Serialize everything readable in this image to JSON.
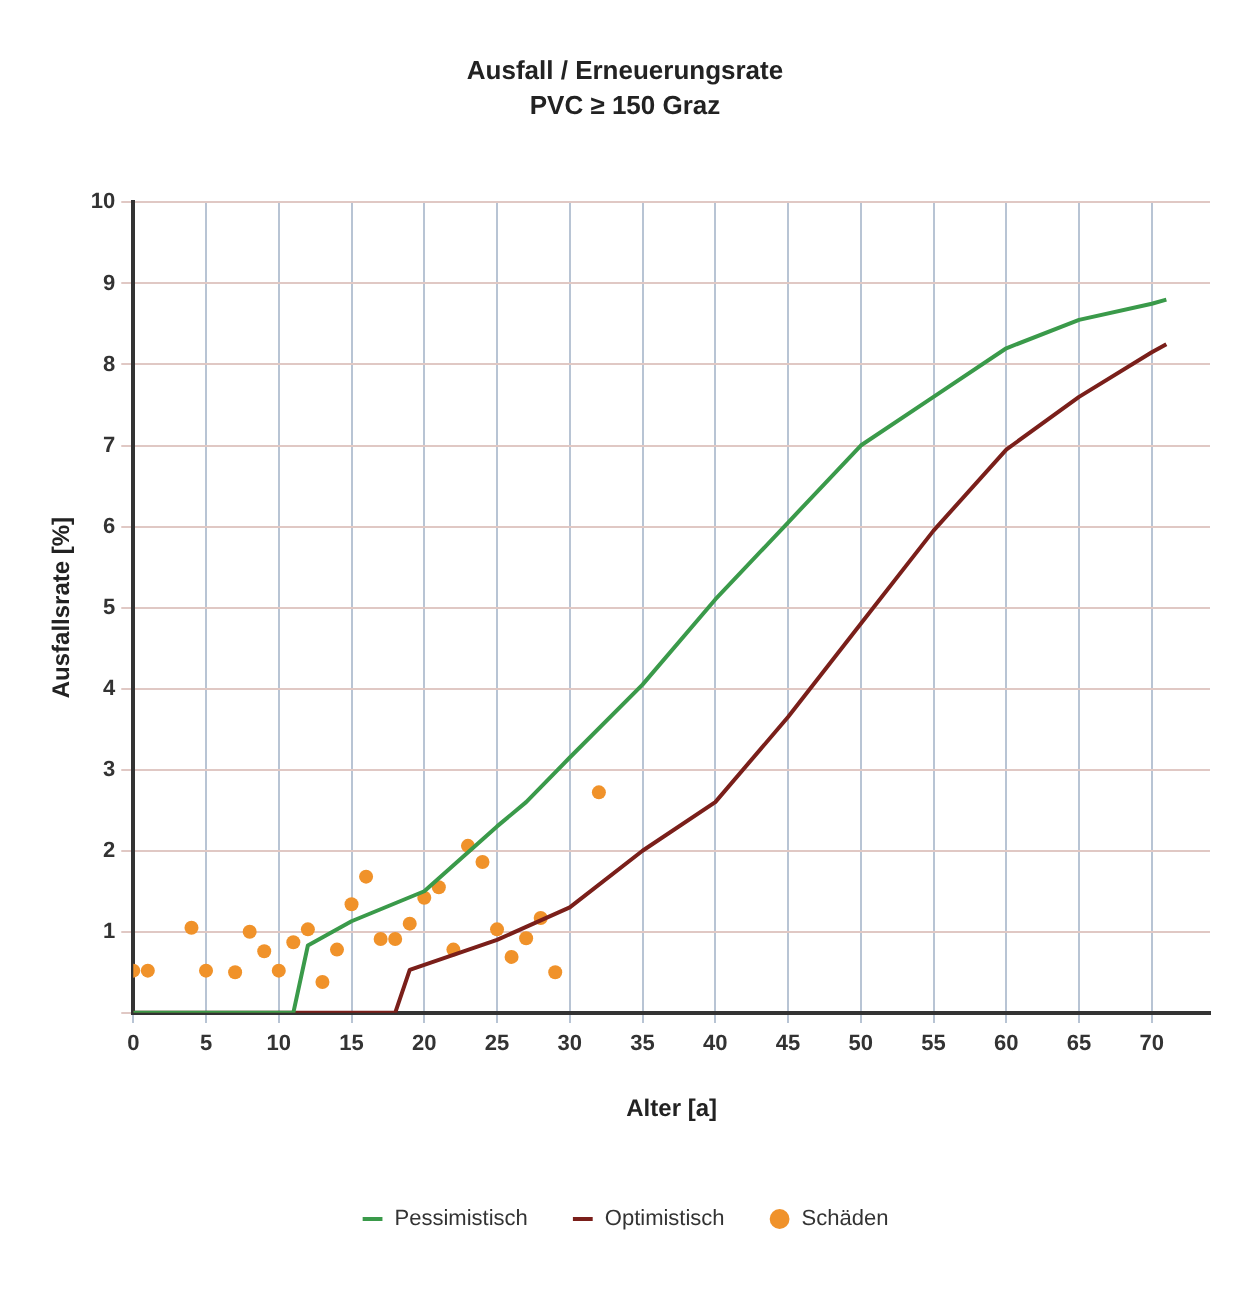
{
  "chart_data": {
    "type": "line",
    "title": "Ausfall / Erneuerungsrate",
    "subtitle": "PVC ≥ 150 Graz",
    "xlabel": "Alter [a]",
    "ylabel": "Ausfallsrate [%]",
    "xlim": [
      0,
      74
    ],
    "xticks": [
      0,
      5,
      10,
      15,
      20,
      25,
      30,
      35,
      40,
      45,
      50,
      55,
      60,
      65,
      70
    ],
    "ylim": [
      0,
      10
    ],
    "yticks": [
      {
        "value": 0,
        "label": null
      },
      1,
      2,
      3,
      4,
      5,
      6,
      7,
      8,
      9,
      10
    ],
    "grid": true,
    "legend": "bottom",
    "series": [
      {
        "name": "Pessimistisch",
        "color": "#3a9a4a",
        "x": [
          0,
          11,
          12,
          15,
          20,
          25,
          27,
          30,
          35,
          40,
          45,
          50,
          55,
          60,
          65,
          70,
          71
        ],
        "values": [
          0,
          0,
          0.83,
          1.13,
          1.5,
          2.3,
          2.6,
          3.15,
          4.05,
          5.1,
          6.05,
          7.0,
          7.6,
          8.2,
          8.55,
          8.75,
          8.8
        ]
      },
      {
        "name": "Optimistisch",
        "color": "#7a1f1a",
        "x": [
          0,
          18,
          19,
          25,
          30,
          35,
          40,
          45,
          50,
          55,
          60,
          65,
          70,
          71
        ],
        "values": [
          0,
          0,
          0.53,
          0.9,
          1.3,
          2.0,
          2.6,
          3.65,
          4.8,
          5.95,
          6.95,
          7.6,
          8.15,
          8.25
        ]
      },
      {
        "name": "Schäden",
        "type": "scatter",
        "color": "#f0922a",
        "x": [
          0,
          1,
          4,
          5,
          7,
          8,
          9,
          10,
          11,
          12,
          13,
          14,
          15,
          16,
          17,
          18,
          19,
          20,
          21,
          22,
          23,
          24,
          25,
          26,
          27,
          28,
          29,
          32
        ],
        "values": [
          0.52,
          0.52,
          1.05,
          0.52,
          0.5,
          1.0,
          0.76,
          0.52,
          0.87,
          1.03,
          0.38,
          0.78,
          1.34,
          1.68,
          0.91,
          0.91,
          1.1,
          1.42,
          1.55,
          0.78,
          2.06,
          1.86,
          1.03,
          0.69,
          0.92,
          1.17,
          0.5,
          2.72
        ]
      }
    ]
  }
}
